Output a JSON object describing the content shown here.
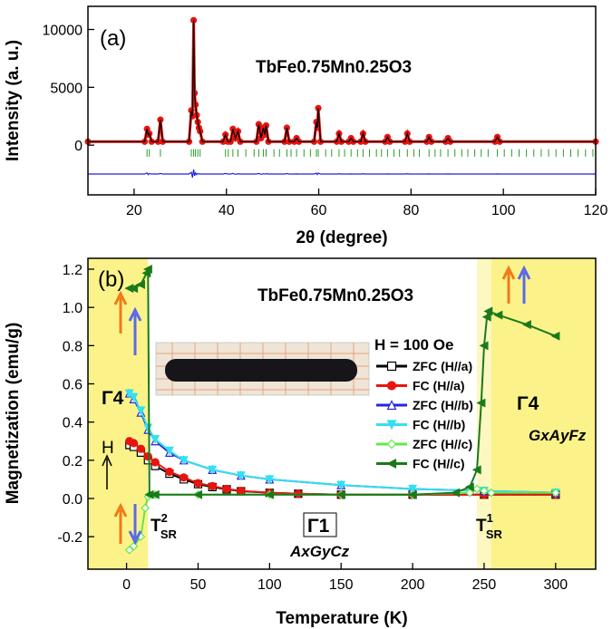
{
  "chart_data": [
    {
      "type": "line",
      "panel": "(a)",
      "title": "TbFe0.75Mn0.25O3",
      "x_label": "2θ (degree)",
      "y_label": "Intensity (a. u.)",
      "xlim": [
        10,
        120
      ],
      "ylim": [
        -4300,
        12000
      ],
      "xticks": [
        20,
        40,
        60,
        80,
        100,
        120
      ],
      "yticks": [
        0,
        5000,
        10000
      ],
      "x": [
        10,
        22.3,
        22.8,
        23.05,
        23.3,
        23.8,
        25.2,
        25.7,
        26.2,
        31.9,
        32.4,
        32.65,
        32.9,
        33.1,
        33.3,
        33.55,
        33.8,
        34.05,
        34.3,
        34.8,
        39.3,
        39.8,
        40.3,
        40.9,
        41.4,
        41.95,
        42.5,
        43.0,
        46.5,
        47.0,
        47.5,
        48.0,
        48.3,
        48.6,
        49.1,
        52.6,
        53.1,
        53.6,
        54.7,
        55.2,
        55.7,
        59.0,
        59.5,
        59.7,
        59.9,
        60.4,
        63.9,
        64.4,
        64.9,
        66.5,
        67.0,
        67.5,
        69.1,
        69.6,
        70.1,
        74.4,
        74.9,
        75.4,
        78.7,
        79.2,
        79.7,
        83.4,
        83.9,
        84.4,
        87.5,
        88.0,
        88.5,
        98.2,
        98.7,
        99.2,
        120
      ],
      "series": [
        {
          "color": "#e8150f",
          "marker": "circle",
          "values": [
            300,
            300,
            1400,
            900,
            1000,
            300,
            300,
            2200,
            300,
            300,
            3000,
            2500,
            10800,
            4500,
            3500,
            2600,
            2000,
            1500,
            1200,
            300,
            300,
            900,
            300,
            300,
            1400,
            600,
            1200,
            300,
            300,
            1800,
            600,
            1500,
            900,
            1700,
            300,
            300,
            1500,
            300,
            300,
            600,
            300,
            300,
            2000,
            1500,
            3200,
            300,
            300,
            1000,
            300,
            300,
            600,
            300,
            300,
            1000,
            300,
            300,
            700,
            300,
            300,
            1000,
            300,
            300,
            700,
            300,
            300,
            600,
            300,
            300,
            700,
            300,
            300
          ]
        },
        {
          "color": "#000000",
          "marker": "none",
          "values": [
            300,
            300,
            1400,
            900,
            1000,
            300,
            300,
            2200,
            300,
            300,
            3000,
            2500,
            10800,
            4500,
            3500,
            2600,
            2000,
            1500,
            1200,
            300,
            300,
            900,
            300,
            300,
            1400,
            600,
            1200,
            300,
            300,
            1800,
            600,
            1500,
            900,
            1700,
            300,
            300,
            1500,
            300,
            300,
            600,
            300,
            300,
            2000,
            1500,
            3200,
            300,
            300,
            1000,
            300,
            300,
            600,
            300,
            300,
            1000,
            300,
            300,
            700,
            300,
            300,
            1000,
            300,
            300,
            700,
            300,
            300,
            600,
            300,
            300,
            700,
            300,
            300
          ]
        },
        {
          "color": "#2020e0",
          "marker": "none",
          "values": [
            -2500,
            -2500,
            -2400,
            -2550,
            -2450,
            -2500,
            -2500,
            -2450,
            -2500,
            -2500,
            -2350,
            -2800,
            -2100,
            -2650,
            -2400,
            -2550,
            -2450,
            -2500,
            -2500,
            -2500,
            -2500,
            -2450,
            -2500,
            -2500,
            -2450,
            -2520,
            -2480,
            -2500,
            -2500,
            -2450,
            -2520,
            -2480,
            -2500,
            -2470,
            -2500,
            -2500,
            -2460,
            -2500,
            -2500,
            -2490,
            -2500,
            -2500,
            -2430,
            -2540,
            -2420,
            -2500,
            -2500,
            -2480,
            -2500,
            -2500,
            -2490,
            -2500,
            -2500,
            -2480,
            -2500,
            -2500,
            -2490,
            -2500,
            -2500,
            -2480,
            -2500,
            -2500,
            -2490,
            -2500,
            -2500,
            -2490,
            -2500,
            -2500,
            -2490,
            -2500,
            -2500
          ]
        }
      ],
      "bragg_color": "#2a9a2a",
      "bragg_positions": [
        22.8,
        23.3,
        25.7,
        32.4,
        32.9,
        33.3,
        33.8,
        34.3,
        39.8,
        40.4,
        41.4,
        42.5,
        44.2,
        46.0,
        47.0,
        48.0,
        48.6,
        50.3,
        51.5,
        53.1,
        54.0,
        55.2,
        56.8,
        58.2,
        59.5,
        59.9,
        61.5,
        62.8,
        64.4,
        65.6,
        67.0,
        68.4,
        69.6,
        71.0,
        72.5,
        73.6,
        74.9,
        76.3,
        77.5,
        79.2,
        80.6,
        81.8,
        83.9,
        85.2,
        86.4,
        88.0,
        89.5,
        91.0,
        92.3,
        93.8,
        95.2,
        96.7,
        98.7,
        100.2,
        101.8,
        103.4,
        105.0,
        106.6,
        108.2,
        109.8,
        111.4,
        113.0,
        114.6,
        116.2,
        117.8,
        119.4
      ]
    },
    {
      "type": "line",
      "panel": "(b)",
      "title": "TbFe0.75Mn0.25O3",
      "x_label": "Temperature (K)",
      "y_label": "Magnetization (emu/g)",
      "xlim": [
        -27,
        328
      ],
      "ylim": [
        -0.37,
        1.257
      ],
      "xticks": [
        0,
        50,
        100,
        150,
        200,
        250,
        300
      ],
      "yticks": [
        -0.2,
        {
          "value": 0,
          "label": "0.0"
        },
        0.2,
        0.4,
        0.6,
        0.8,
        {
          "value": 1,
          "label": "1.0"
        },
        1.2
      ],
      "shaded_regions": [
        {
          "from": -27,
          "to": 15,
          "color": "#fbf38a"
        },
        {
          "from": 245,
          "to": 255,
          "color": "#fdf8c0"
        },
        {
          "from": 255,
          "to": 328,
          "color": "#fbf38a"
        }
      ],
      "legend_title": "H = 100 Oe",
      "series": [
        {
          "name": "ZFC (H//a)",
          "color": "#000000",
          "marker": "square-open",
          "x": [
            2,
            5,
            10,
            15,
            20,
            30,
            40,
            50,
            60,
            70,
            80,
            100,
            120,
            150,
            200,
            250,
            300
          ],
          "values": [
            0.28,
            0.27,
            0.24,
            0.2,
            0.17,
            0.13,
            0.1,
            0.075,
            0.06,
            0.048,
            0.038,
            0.03,
            0.025,
            0.02,
            0.02,
            0.02,
            0.02
          ]
        },
        {
          "name": "FC (H//a)",
          "color": "#e8150f",
          "marker": "circle",
          "x": [
            2,
            5,
            10,
            15,
            20,
            30,
            40,
            50,
            60,
            70,
            80,
            100,
            120,
            150,
            200,
            250,
            300
          ],
          "values": [
            0.3,
            0.29,
            0.26,
            0.22,
            0.19,
            0.14,
            0.11,
            0.08,
            0.065,
            0.05,
            0.04,
            0.03,
            0.025,
            0.02,
            0.02,
            0.02,
            0.02
          ]
        },
        {
          "name": "ZFC (H//b)",
          "color": "#2626d9",
          "marker": "triangle-up-open",
          "x": [
            2,
            5,
            10,
            15,
            20,
            30,
            40,
            60,
            80,
            100,
            150,
            200,
            250,
            300
          ],
          "values": [
            0.55,
            0.52,
            0.45,
            0.36,
            0.3,
            0.24,
            0.2,
            0.15,
            0.12,
            0.1,
            0.07,
            0.05,
            0.04,
            0.03
          ]
        },
        {
          "name": "FC (H//b)",
          "color": "#33e0f0",
          "marker": "triangle-down",
          "x": [
            2,
            5,
            10,
            15,
            20,
            30,
            40,
            60,
            80,
            100,
            150,
            200,
            250,
            300
          ],
          "values": [
            0.55,
            0.53,
            0.46,
            0.37,
            0.31,
            0.25,
            0.2,
            0.15,
            0.12,
            0.1,
            0.07,
            0.05,
            0.04,
            0.03
          ]
        },
        {
          "name": "ZFC (H//c)",
          "color": "#66e64d",
          "marker": "diamond-open",
          "x": [
            2,
            5,
            10,
            13,
            15,
            16,
            20,
            50,
            100,
            150,
            200,
            240,
            245,
            250,
            255,
            300
          ],
          "values": [
            -0.27,
            -0.25,
            -0.2,
            -0.05,
            0.01,
            0.02,
            0.02,
            0.02,
            0.02,
            0.02,
            0.02,
            0.03,
            0.05,
            0.04,
            0.03,
            0.03
          ]
        },
        {
          "name": "FC (H//c)",
          "color": "#1a7a1a",
          "marker": "triangle-left",
          "x": [
            2,
            5,
            10,
            14,
            15,
            16,
            20,
            50,
            100,
            150,
            200,
            230,
            240,
            245,
            248,
            250,
            252,
            253,
            260,
            280,
            300
          ],
          "values": [
            1.1,
            1.1,
            1.12,
            1.18,
            1.2,
            0.02,
            0.02,
            0.02,
            0.02,
            0.02,
            0.02,
            0.03,
            0.06,
            0.15,
            0.5,
            0.8,
            0.95,
            0.98,
            0.96,
            0.91,
            0.85
          ]
        }
      ],
      "annotations": {
        "gamma4_left": "Γ4",
        "gamma4_right": "Γ4",
        "config_right": "GxAyFz",
        "gamma1": "Γ1",
        "config_mid": "AxGyCz",
        "field": "H",
        "tsr2": {
          "text": "T",
          "sub": "SR",
          "sup": "2"
        },
        "tsr1": {
          "text": "T",
          "sub": "SR",
          "sup": "1"
        }
      }
    }
  ]
}
